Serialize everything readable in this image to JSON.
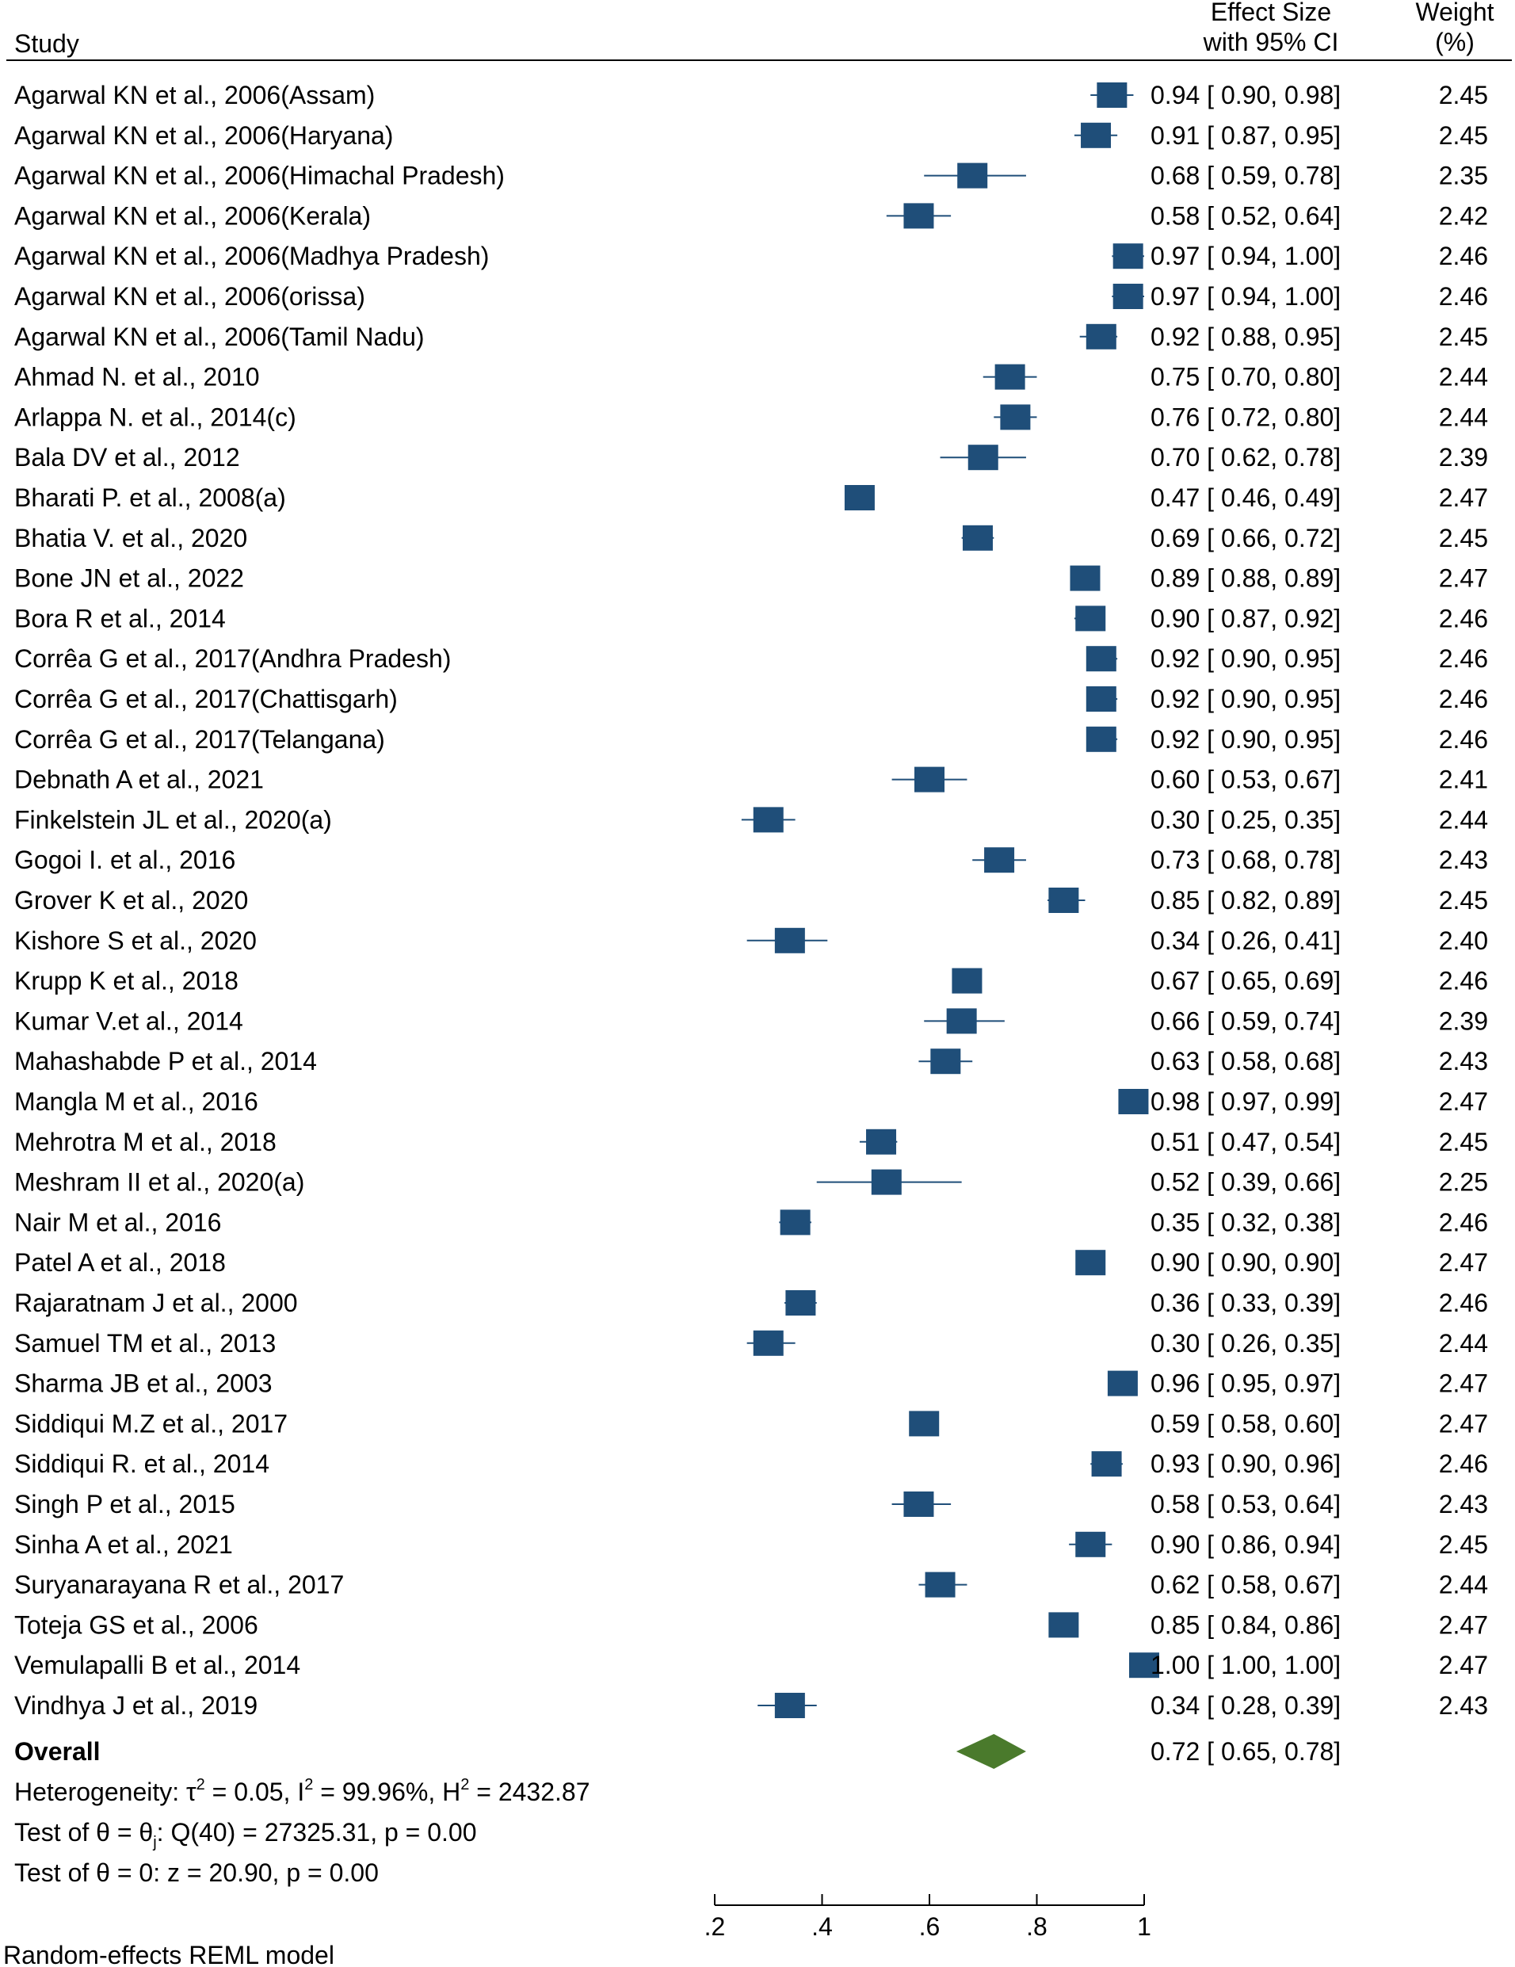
{
  "chart_data": {
    "type": "forest",
    "columns": {
      "study": "Study",
      "effect_line1": "Effect Size",
      "effect_line2": "with 95% CI",
      "weight_line1": "Weight",
      "weight_line2": "(%)"
    },
    "xlim": [
      0.2,
      1.0
    ],
    "xticks": [
      {
        "value": 0.2,
        "label": ".2"
      },
      {
        "value": 0.4,
        "label": ".4"
      },
      {
        "value": 0.6,
        "label": ".6"
      },
      {
        "value": 0.8,
        "label": ".8"
      },
      {
        "value": 1.0,
        "label": "1"
      }
    ],
    "marker_color": "#1f4e79",
    "overall_color": "#4a7a2c",
    "studies": [
      {
        "label": "Agarwal KN et al., 2006(Assam)",
        "es": 0.94,
        "lo": 0.9,
        "hi": 0.98,
        "es_text": "0.94",
        "lo_text": "0.90",
        "hi_text": "0.98",
        "weight": 2.45,
        "weight_text": "2.45"
      },
      {
        "label": "Agarwal KN et al., 2006(Haryana)",
        "es": 0.91,
        "lo": 0.87,
        "hi": 0.95,
        "es_text": "0.91",
        "lo_text": "0.87",
        "hi_text": "0.95",
        "weight": 2.45,
        "weight_text": "2.45"
      },
      {
        "label": "Agarwal KN et al., 2006(Himachal Pradesh)",
        "es": 0.68,
        "lo": 0.59,
        "hi": 0.78,
        "es_text": "0.68",
        "lo_text": "0.59",
        "hi_text": "0.78",
        "weight": 2.35,
        "weight_text": "2.35"
      },
      {
        "label": "Agarwal KN et al., 2006(Kerala)",
        "es": 0.58,
        "lo": 0.52,
        "hi": 0.64,
        "es_text": "0.58",
        "lo_text": "0.52",
        "hi_text": "0.64",
        "weight": 2.42,
        "weight_text": "2.42"
      },
      {
        "label": "Agarwal KN et al., 2006(Madhya Pradesh)",
        "es": 0.97,
        "lo": 0.94,
        "hi": 1.0,
        "es_text": "0.97",
        "lo_text": "0.94",
        "hi_text": "1.00",
        "weight": 2.46,
        "weight_text": "2.46"
      },
      {
        "label": "Agarwal KN et al., 2006(orissa)",
        "es": 0.97,
        "lo": 0.94,
        "hi": 1.0,
        "es_text": "0.97",
        "lo_text": "0.94",
        "hi_text": "1.00",
        "weight": 2.46,
        "weight_text": "2.46"
      },
      {
        "label": "Agarwal KN et al., 2006(Tamil Nadu)",
        "es": 0.92,
        "lo": 0.88,
        "hi": 0.95,
        "es_text": "0.92",
        "lo_text": "0.88",
        "hi_text": "0.95",
        "weight": 2.45,
        "weight_text": "2.45"
      },
      {
        "label": "Ahmad N. et al., 2010",
        "es": 0.75,
        "lo": 0.7,
        "hi": 0.8,
        "es_text": "0.75",
        "lo_text": "0.70",
        "hi_text": "0.80",
        "weight": 2.44,
        "weight_text": "2.44"
      },
      {
        "label": "Arlappa N. et al., 2014(c)",
        "es": 0.76,
        "lo": 0.72,
        "hi": 0.8,
        "es_text": "0.76",
        "lo_text": "0.72",
        "hi_text": "0.80",
        "weight": 2.44,
        "weight_text": "2.44"
      },
      {
        "label": "Bala DV et al., 2012",
        "es": 0.7,
        "lo": 0.62,
        "hi": 0.78,
        "es_text": "0.70",
        "lo_text": "0.62",
        "hi_text": "0.78",
        "weight": 2.39,
        "weight_text": "2.39"
      },
      {
        "label": "Bharati P. et al., 2008(a)",
        "es": 0.47,
        "lo": 0.46,
        "hi": 0.49,
        "es_text": "0.47",
        "lo_text": "0.46",
        "hi_text": "0.49",
        "weight": 2.47,
        "weight_text": "2.47"
      },
      {
        "label": "Bhatia V. et al., 2020",
        "es": 0.69,
        "lo": 0.66,
        "hi": 0.72,
        "es_text": "0.69",
        "lo_text": "0.66",
        "hi_text": "0.72",
        "weight": 2.45,
        "weight_text": "2.45"
      },
      {
        "label": "Bone JN et al., 2022",
        "es": 0.89,
        "lo": 0.88,
        "hi": 0.89,
        "es_text": "0.89",
        "lo_text": "0.88",
        "hi_text": "0.89",
        "weight": 2.47,
        "weight_text": "2.47"
      },
      {
        "label": "Bora R et al., 2014",
        "es": 0.9,
        "lo": 0.87,
        "hi": 0.92,
        "es_text": "0.90",
        "lo_text": "0.87",
        "hi_text": "0.92",
        "weight": 2.46,
        "weight_text": "2.46"
      },
      {
        "label": "Corrêa G et al., 2017(Andhra Pradesh)",
        "es": 0.92,
        "lo": 0.9,
        "hi": 0.95,
        "es_text": "0.92",
        "lo_text": "0.90",
        "hi_text": "0.95",
        "weight": 2.46,
        "weight_text": "2.46"
      },
      {
        "label": "Corrêa G et al., 2017(Chattisgarh)",
        "es": 0.92,
        "lo": 0.9,
        "hi": 0.95,
        "es_text": "0.92",
        "lo_text": "0.90",
        "hi_text": "0.95",
        "weight": 2.46,
        "weight_text": "2.46"
      },
      {
        "label": "Corrêa G et al., 2017(Telangana)",
        "es": 0.92,
        "lo": 0.9,
        "hi": 0.95,
        "es_text": "0.92",
        "lo_text": "0.90",
        "hi_text": "0.95",
        "weight": 2.46,
        "weight_text": "2.46"
      },
      {
        "label": "Debnath A et al., 2021",
        "es": 0.6,
        "lo": 0.53,
        "hi": 0.67,
        "es_text": "0.60",
        "lo_text": "0.53",
        "hi_text": "0.67",
        "weight": 2.41,
        "weight_text": "2.41"
      },
      {
        "label": "Finkelstein JL et al., 2020(a)",
        "es": 0.3,
        "lo": 0.25,
        "hi": 0.35,
        "es_text": "0.30",
        "lo_text": "0.25",
        "hi_text": "0.35",
        "weight": 2.44,
        "weight_text": "2.44"
      },
      {
        "label": "Gogoi I. et al., 2016",
        "es": 0.73,
        "lo": 0.68,
        "hi": 0.78,
        "es_text": "0.73",
        "lo_text": "0.68",
        "hi_text": "0.78",
        "weight": 2.43,
        "weight_text": "2.43"
      },
      {
        "label": "Grover K et al., 2020",
        "es": 0.85,
        "lo": 0.82,
        "hi": 0.89,
        "es_text": "0.85",
        "lo_text": "0.82",
        "hi_text": "0.89",
        "weight": 2.45,
        "weight_text": "2.45"
      },
      {
        "label": "Kishore S et al., 2020",
        "es": 0.34,
        "lo": 0.26,
        "hi": 0.41,
        "es_text": "0.34",
        "lo_text": "0.26",
        "hi_text": "0.41",
        "weight": 2.4,
        "weight_text": "2.40"
      },
      {
        "label": "Krupp K et al., 2018",
        "es": 0.67,
        "lo": 0.65,
        "hi": 0.69,
        "es_text": "0.67",
        "lo_text": "0.65",
        "hi_text": "0.69",
        "weight": 2.46,
        "weight_text": "2.46"
      },
      {
        "label": "Kumar V.et al., 2014",
        "es": 0.66,
        "lo": 0.59,
        "hi": 0.74,
        "es_text": "0.66",
        "lo_text": "0.59",
        "hi_text": "0.74",
        "weight": 2.39,
        "weight_text": "2.39"
      },
      {
        "label": "Mahashabde P et al., 2014",
        "es": 0.63,
        "lo": 0.58,
        "hi": 0.68,
        "es_text": "0.63",
        "lo_text": "0.58",
        "hi_text": "0.68",
        "weight": 2.43,
        "weight_text": "2.43"
      },
      {
        "label": "Mangla M et al., 2016",
        "es": 0.98,
        "lo": 0.97,
        "hi": 0.99,
        "es_text": "0.98",
        "lo_text": "0.97",
        "hi_text": "0.99",
        "weight": 2.47,
        "weight_text": "2.47"
      },
      {
        "label": "Mehrotra M et al., 2018",
        "es": 0.51,
        "lo": 0.47,
        "hi": 0.54,
        "es_text": "0.51",
        "lo_text": "0.47",
        "hi_text": "0.54",
        "weight": 2.45,
        "weight_text": "2.45"
      },
      {
        "label": "Meshram II et al., 2020(a)",
        "es": 0.52,
        "lo": 0.39,
        "hi": 0.66,
        "es_text": "0.52",
        "lo_text": "0.39",
        "hi_text": "0.66",
        "weight": 2.25,
        "weight_text": "2.25"
      },
      {
        "label": "Nair M et al., 2016",
        "es": 0.35,
        "lo": 0.32,
        "hi": 0.38,
        "es_text": "0.35",
        "lo_text": "0.32",
        "hi_text": "0.38",
        "weight": 2.46,
        "weight_text": "2.46"
      },
      {
        "label": "Patel A et al., 2018",
        "es": 0.9,
        "lo": 0.9,
        "hi": 0.9,
        "es_text": "0.90",
        "lo_text": "0.90",
        "hi_text": "0.90",
        "weight": 2.47,
        "weight_text": "2.47"
      },
      {
        "label": "Rajaratnam  J et al., 2000",
        "es": 0.36,
        "lo": 0.33,
        "hi": 0.39,
        "es_text": "0.36",
        "lo_text": "0.33",
        "hi_text": "0.39",
        "weight": 2.46,
        "weight_text": "2.46"
      },
      {
        "label": "Samuel TM et al., 2013",
        "es": 0.3,
        "lo": 0.26,
        "hi": 0.35,
        "es_text": "0.30",
        "lo_text": "0.26",
        "hi_text": "0.35",
        "weight": 2.44,
        "weight_text": "2.44"
      },
      {
        "label": "Sharma JB et al., 2003",
        "es": 0.96,
        "lo": 0.95,
        "hi": 0.97,
        "es_text": "0.96",
        "lo_text": "0.95",
        "hi_text": "0.97",
        "weight": 2.47,
        "weight_text": "2.47"
      },
      {
        "label": "Siddiqui M.Z et al., 2017",
        "es": 0.59,
        "lo": 0.58,
        "hi": 0.6,
        "es_text": "0.59",
        "lo_text": "0.58",
        "hi_text": "0.60",
        "weight": 2.47,
        "weight_text": "2.47"
      },
      {
        "label": "Siddiqui R. et al., 2014",
        "es": 0.93,
        "lo": 0.9,
        "hi": 0.96,
        "es_text": "0.93",
        "lo_text": "0.90",
        "hi_text": "0.96",
        "weight": 2.46,
        "weight_text": "2.46"
      },
      {
        "label": "Singh P  et al., 2015",
        "es": 0.58,
        "lo": 0.53,
        "hi": 0.64,
        "es_text": "0.58",
        "lo_text": "0.53",
        "hi_text": "0.64",
        "weight": 2.43,
        "weight_text": "2.43"
      },
      {
        "label": "Sinha A et al., 2021",
        "es": 0.9,
        "lo": 0.86,
        "hi": 0.94,
        "es_text": "0.90",
        "lo_text": "0.86",
        "hi_text": "0.94",
        "weight": 2.45,
        "weight_text": "2.45"
      },
      {
        "label": "Suryanarayana R et al., 2017",
        "es": 0.62,
        "lo": 0.58,
        "hi": 0.67,
        "es_text": "0.62",
        "lo_text": "0.58",
        "hi_text": "0.67",
        "weight": 2.44,
        "weight_text": "2.44"
      },
      {
        "label": "Toteja GS et al., 2006",
        "es": 0.85,
        "lo": 0.84,
        "hi": 0.86,
        "es_text": "0.85",
        "lo_text": "0.84",
        "hi_text": "0.86",
        "weight": 2.47,
        "weight_text": "2.47"
      },
      {
        "label": "Vemulapalli B et al., 2014",
        "es": 1.0,
        "lo": 1.0,
        "hi": 1.0,
        "es_text": "1.00",
        "lo_text": "1.00",
        "hi_text": "1.00",
        "weight": 2.47,
        "weight_text": "2.47"
      },
      {
        "label": "Vindhya J et al., 2019",
        "es": 0.34,
        "lo": 0.28,
        "hi": 0.39,
        "es_text": "0.34",
        "lo_text": "0.28",
        "hi_text": "0.39",
        "weight": 2.43,
        "weight_text": "2.43"
      }
    ],
    "overall": {
      "label": "Overall",
      "es": 0.72,
      "lo": 0.65,
      "hi": 0.78,
      "es_text": "0.72",
      "lo_text": "0.65",
      "hi_text": "0.78"
    },
    "heterogeneity": {
      "prefix": "Heterogeneity: τ",
      "tau_sup": "2",
      "tau_value": " = 0.05, I",
      "i_sup": "2",
      "i_value": " = 99.96%, H",
      "h_sup": "2",
      "h_value": " = 2432.87"
    },
    "test_theta_i": {
      "prefix": "Test of θ = θ",
      "sub": "j",
      "rest": ": Q(40) = 27325.31, p = 0.00"
    },
    "test_theta_zero": "Test of θ = 0: z = 20.90, p = 0.00",
    "model_note": "Random-effects REML model"
  }
}
